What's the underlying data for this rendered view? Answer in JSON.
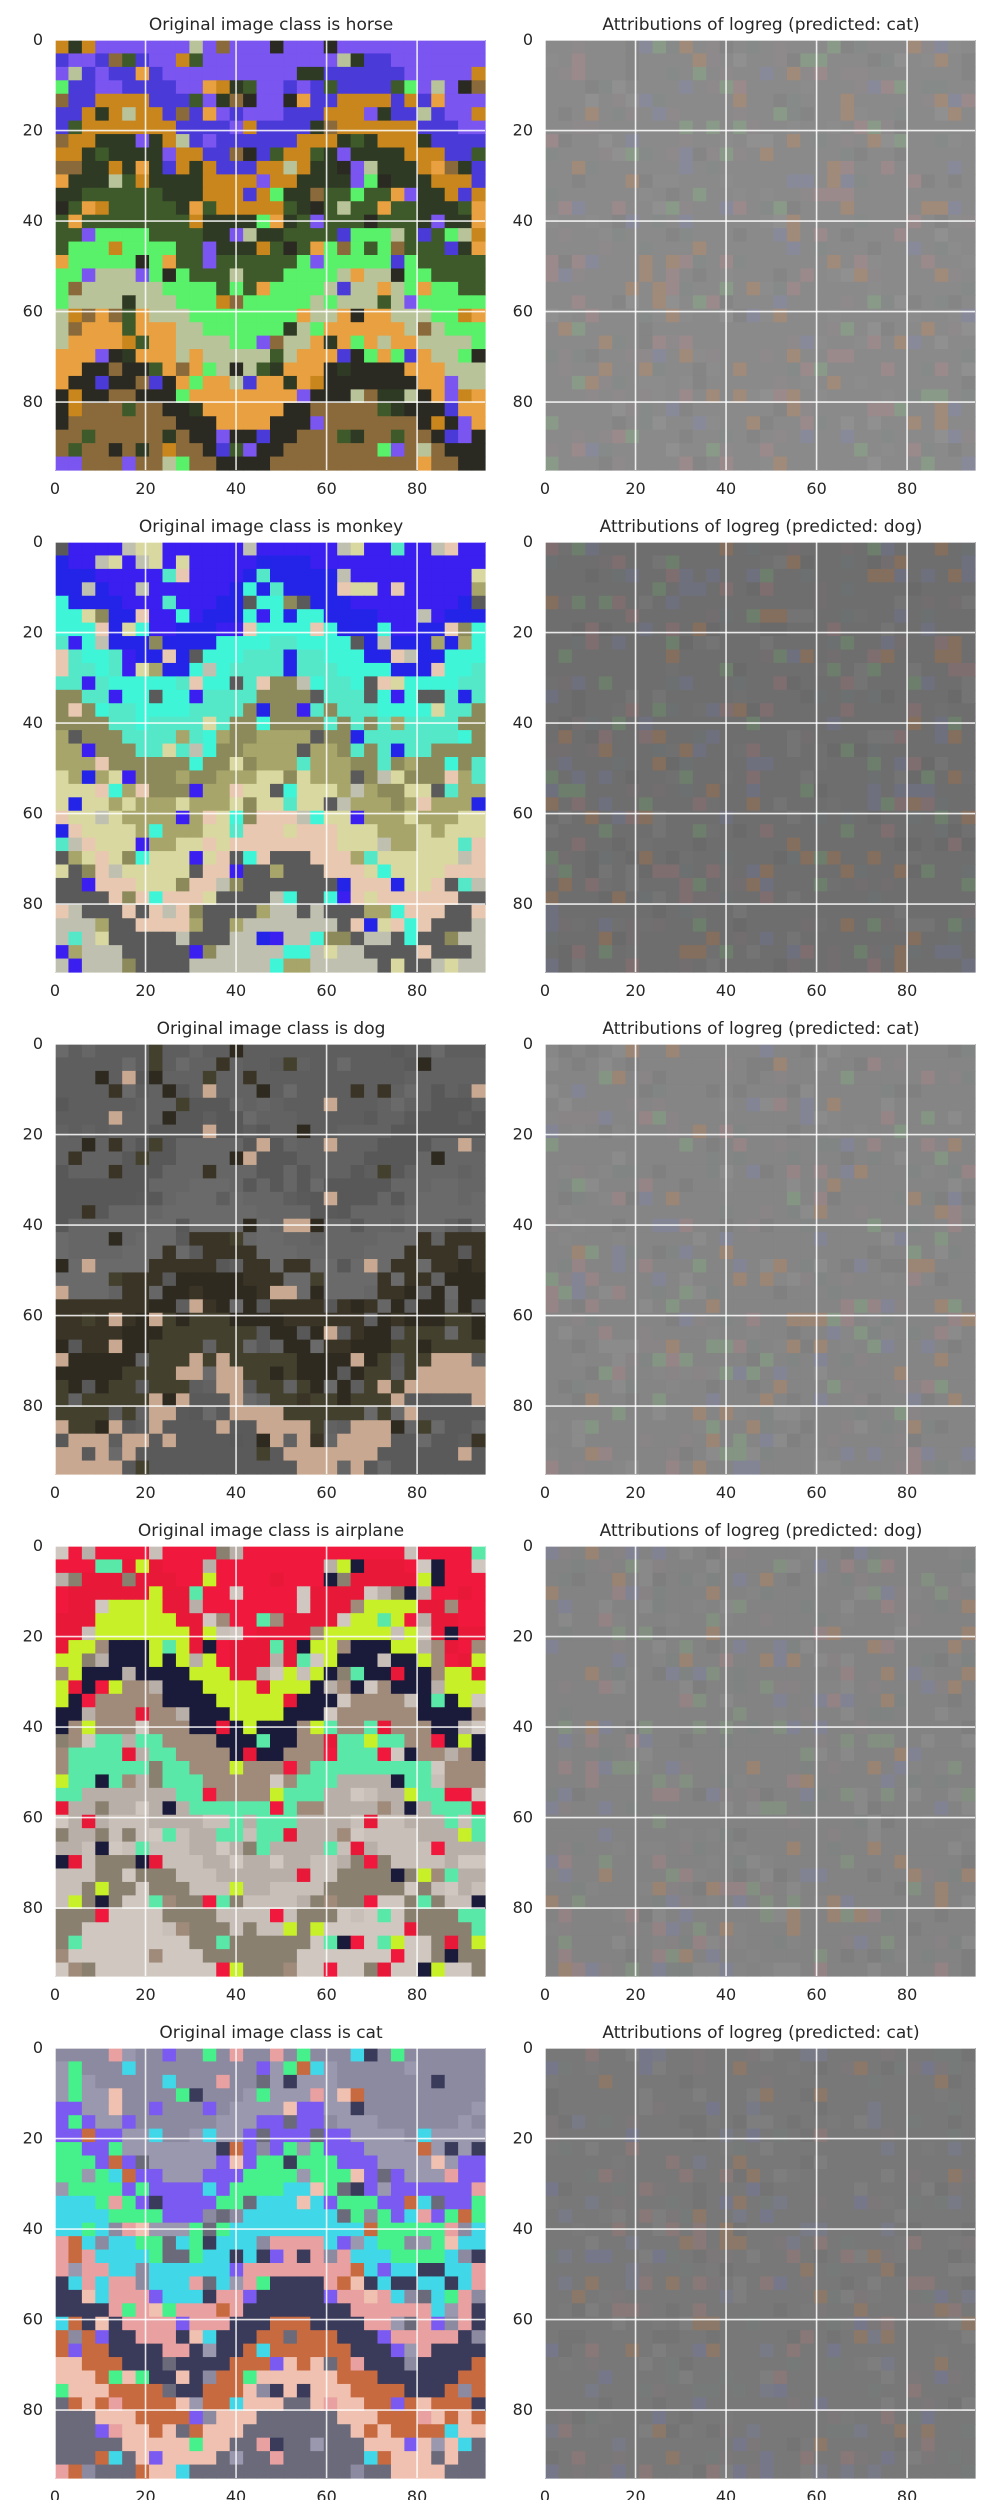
{
  "figure": {
    "panel_count": 10,
    "grid": "5 rows x 2 columns",
    "axis_style": "white gridlines on image, ticks 0-80 step 20 on both axes, y axis inverted (0 at top)"
  },
  "chart_data": [
    {
      "type": "heatmap",
      "title": "Original image class is horse",
      "image_kind": "original",
      "subject": "horse",
      "xticks": [
        0,
        20,
        40,
        60,
        80
      ],
      "yticks": [
        0,
        20,
        40,
        60,
        80
      ],
      "xlim": [
        0,
        95
      ],
      "ylim": [
        95,
        0
      ],
      "grid": true,
      "palette": [
        "#7a55f0",
        "#4a3bd8",
        "#c9861d",
        "#2f3a24",
        "#3f5a2a",
        "#59f06a",
        "#b9c39a",
        "#e8a040",
        "#2a2a22",
        "#8a6a3a"
      ]
    },
    {
      "type": "heatmap",
      "title": "Attributions of logreg (predicted: cat)",
      "image_kind": "attribution",
      "predicted": "cat",
      "xticks": [
        0,
        20,
        40,
        60,
        80
      ],
      "yticks": [
        0,
        20,
        40,
        60,
        80
      ],
      "xlim": [
        0,
        95
      ],
      "ylim": [
        95,
        0
      ],
      "grid": true,
      "palette": [
        "#8a8a8a",
        "#8c8c8c",
        "#858585",
        "#909090",
        "#8e8a8c",
        "#868a88",
        "#9a8a8c",
        "#888a9a",
        "#8a9a88",
        "#a08a7a"
      ]
    },
    {
      "type": "heatmap",
      "title": "Original image class is monkey",
      "image_kind": "original",
      "subject": "monkey",
      "xticks": [
        0,
        20,
        40,
        60,
        80
      ],
      "yticks": [
        0,
        20,
        40,
        60,
        80
      ],
      "xlim": [
        0,
        95
      ],
      "ylim": [
        95,
        0
      ],
      "grid": true,
      "palette": [
        "#3b1ff0",
        "#2424e8",
        "#3ff5d8",
        "#55e8c8",
        "#8c8a5a",
        "#a7a56a",
        "#d8d8a0",
        "#e8c8b0",
        "#5a5a5a",
        "#c0c0b0"
      ]
    },
    {
      "type": "heatmap",
      "title": "Attributions of logreg (predicted: dog)",
      "image_kind": "attribution",
      "predicted": "dog",
      "xticks": [
        0,
        20,
        40,
        60,
        80
      ],
      "yticks": [
        0,
        20,
        40,
        60,
        80
      ],
      "xlim": [
        0,
        95
      ],
      "ylim": [
        95,
        0
      ],
      "grid": true,
      "palette": [
        "#6e6e6e",
        "#707070",
        "#6a6a6a",
        "#747474",
        "#726e70",
        "#6c7070",
        "#7e6e70",
        "#6e707e",
        "#6e7e6c",
        "#846e5e"
      ]
    },
    {
      "type": "heatmap",
      "title": "Original image class is dog",
      "image_kind": "original",
      "subject": "dog",
      "xticks": [
        0,
        20,
        40,
        60,
        80
      ],
      "yticks": [
        0,
        20,
        40,
        60,
        80
      ],
      "xlim": [
        0,
        95
      ],
      "ylim": [
        95,
        0
      ],
      "grid": true,
      "palette": [
        "#5e5e5e",
        "#626262",
        "#585858",
        "#666666",
        "#6a6a6a",
        "#3a3426",
        "#2e2a20",
        "#44402e",
        "#c8a890",
        "#5a5a5a"
      ]
    },
    {
      "type": "heatmap",
      "title": "Attributions of logreg (predicted: cat)",
      "image_kind": "attribution",
      "predicted": "cat",
      "xticks": [
        0,
        20,
        40,
        60,
        80
      ],
      "yticks": [
        0,
        20,
        40,
        60,
        80
      ],
      "xlim": [
        0,
        95
      ],
      "ylim": [
        95,
        0
      ],
      "grid": true,
      "palette": [
        "#858585",
        "#878787",
        "#808080",
        "#8b8b8b",
        "#898587",
        "#818583",
        "#958587",
        "#838595",
        "#859583",
        "#9b8575"
      ]
    },
    {
      "type": "heatmap",
      "title": "Original image class is airplane",
      "image_kind": "original",
      "subject": "airplane",
      "xticks": [
        0,
        20,
        40,
        60,
        80
      ],
      "yticks": [
        0,
        20,
        40,
        60,
        80
      ],
      "xlim": [
        0,
        95
      ],
      "ylim": [
        95,
        0
      ],
      "grid": true,
      "palette": [
        "#f0183c",
        "#e81838",
        "#c8f028",
        "#1a1a3a",
        "#a08a7a",
        "#5ae8a8",
        "#b8b0a8",
        "#c8c0b8",
        "#8a8070",
        "#d0c8c0"
      ]
    },
    {
      "type": "heatmap",
      "title": "Attributions of logreg (predicted: dog)",
      "image_kind": "attribution",
      "predicted": "dog",
      "xticks": [
        0,
        20,
        40,
        60,
        80
      ],
      "yticks": [
        0,
        20,
        40,
        60,
        80
      ],
      "xlim": [
        0,
        95
      ],
      "ylim": [
        95,
        0
      ],
      "grid": true,
      "palette": [
        "#838383",
        "#858585",
        "#7e7e7e",
        "#898989",
        "#878385",
        "#7f8381",
        "#938385",
        "#818393",
        "#838f81",
        "#998373"
      ]
    },
    {
      "type": "heatmap",
      "title": "Original image class is cat",
      "image_kind": "original",
      "subject": "cat",
      "xticks": [
        0,
        20,
        40,
        60,
        80
      ],
      "yticks": [
        0,
        20,
        40,
        60,
        80
      ],
      "xlim": [
        0,
        95
      ],
      "ylim": [
        95,
        0
      ],
      "grid": true,
      "palette": [
        "#8c8aa0",
        "#9a98ae",
        "#7a5af0",
        "#46f08a",
        "#40d8e8",
        "#e8a0a0",
        "#3a3a5a",
        "#c86a40",
        "#f0c0b0",
        "#6a6a7a"
      ]
    },
    {
      "type": "heatmap",
      "title": "Attributions of logreg (predicted: cat)",
      "image_kind": "attribution",
      "predicted": "cat",
      "xticks": [
        0,
        20,
        40,
        60,
        80
      ],
      "yticks": [
        0,
        20,
        40,
        60,
        80
      ],
      "xlim": [
        0,
        95
      ],
      "ylim": [
        95,
        0
      ],
      "grid": true,
      "palette": [
        "#787878",
        "#7a7a7a",
        "#747474",
        "#7e7e7e",
        "#7c787a",
        "#767a78",
        "#887878",
        "#76788a",
        "#787a86",
        "#8c7868"
      ]
    }
  ]
}
